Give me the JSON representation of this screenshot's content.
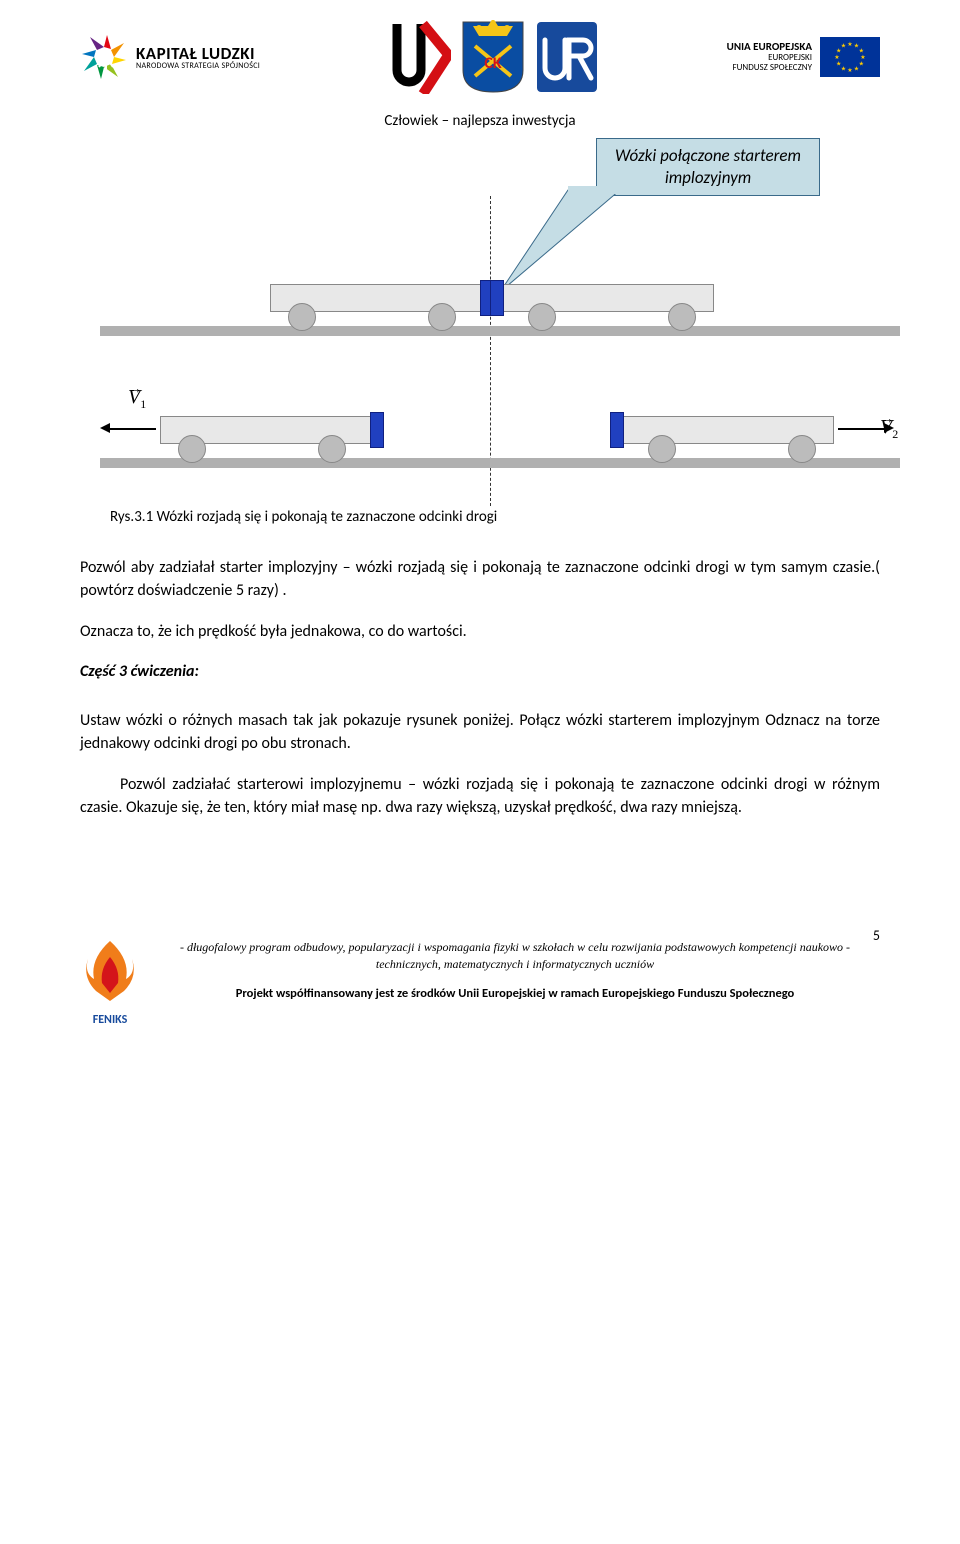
{
  "header": {
    "kl_title": "KAPITAŁ LUDZKI",
    "kl_subtitle": "NARODOWA STRATEGIA SPÓJNOŚCI",
    "eu_line1": "UNIA EUROPEJSKA",
    "eu_line2": "EUROPEJSKI",
    "eu_line3": "FUNDUSZ SPOŁECZNY",
    "tagline": "Człowiek – najlepsza inwestycja",
    "kl_colors": [
      "#e30613",
      "#f39200",
      "#ffd500",
      "#95c11f",
      "#009640",
      "#00a19a",
      "#0075bf",
      "#662483"
    ],
    "eu_flag_bg": "#003399",
    "eu_star": "#ffcc00",
    "ujk_red": "#d40f14",
    "shield_bg": "#0a4da2",
    "shield_gold": "#f5c518",
    "ur_bg": "#174a9c"
  },
  "diagram": {
    "callout_line1": "Wózki połączone starterem",
    "callout_line2": "implozyjnym",
    "callout_bg": "#c5dde5",
    "callout_border": "#3a6a8a",
    "track_color": "#b0b0b0",
    "cart_body": "#e8e8e8",
    "cart_border": "#888888",
    "bumper_color": "#2040c0",
    "wheel_color": "#bcbcbc",
    "v1_label": "V",
    "v1_sub": "1",
    "v2_label": "V",
    "v2_sub": "2"
  },
  "content": {
    "fig_caption": "Rys.3.1 Wózki rozjadą się i pokonają  te zaznaczone odcinki drogi",
    "p1": "Pozwól aby zadziałał starter implozyjny – wózki rozjadą się i pokonają  te zaznaczone odcinki drogi w tym samym czasie.( powtórz doświadczenie 5 razy) .",
    "p2": "Oznacza to, że ich prędkość była jednakowa, co do wartości.",
    "section": "Część 3 ćwiczenia:",
    "p3": "Ustaw  wózki o różnych  masach tak jak pokazuje rysunek poniżej. Połącz  wózki starterem implozyjnym   Odznacz na torze  jednakowy odcinki  drogi po obu stronach.",
    "p4": "Pozwól  zadziałać  starterowi  implozyjnemu  –  wózki  rozjadą  się  i  pokonają      te zaznaczone odcinki drogi w różnym czasie. Okazuje się, że ten, który miał masę np. dwa razy większą, uzyskał prędkość, dwa razy mniejszą."
  },
  "footer": {
    "page_num": "5",
    "line1": "- długofalowy program odbudowy, popularyzacji i wspomagania fizyki w szkołach w celu rozwijania podstawowych kompetencji  naukowo - technicznych, matematycznych i informatycznych uczniów",
    "line2": "Projekt współfinansowany jest ze środków Unii Europejskiej w ramach Europejskiego Funduszu Społecznego",
    "feniks_label": "FENIKS",
    "feniks_orange": "#f07d1a",
    "feniks_red": "#d4141a"
  }
}
